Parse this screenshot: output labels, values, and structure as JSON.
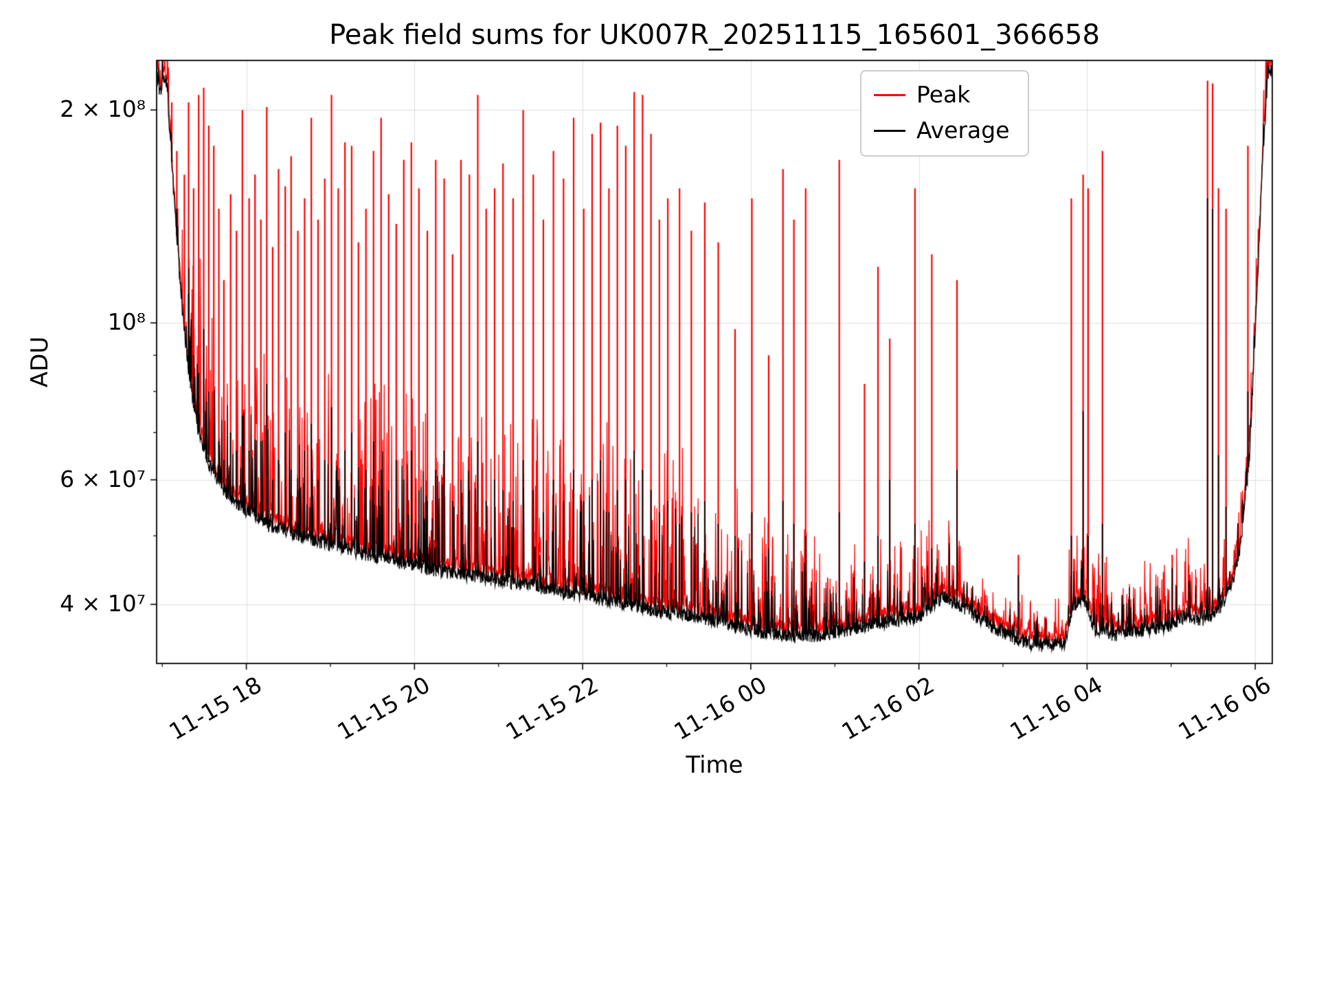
{
  "figure": {
    "title": "Peak field sums for UK007R_20251115_165601_366658",
    "xlabel": "Time",
    "ylabel": "ADU"
  },
  "legend": {
    "items": [
      {
        "label": "Peak",
        "color": "#ff0000"
      },
      {
        "label": "Average",
        "color": "#000000"
      }
    ]
  },
  "chart_data": {
    "type": "line",
    "title": "Peak field sums for UK007R_20251115_165601_366658",
    "xlabel": "Time",
    "ylabel": "ADU",
    "yscale": "log",
    "grid": true,
    "ylim": [
      33000000.0,
      235000000.0
    ],
    "x_hours_span": [
      0,
      13.27
    ],
    "x_start_label": "11-15 16:56",
    "xticks": [
      {
        "t": 1.067,
        "label": "11-15 18"
      },
      {
        "t": 3.067,
        "label": "11-15 20"
      },
      {
        "t": 5.067,
        "label": "11-15 22"
      },
      {
        "t": 7.067,
        "label": "11-16 00"
      },
      {
        "t": 9.067,
        "label": "11-16 02"
      },
      {
        "t": 11.067,
        "label": "11-16 04"
      },
      {
        "t": 13.067,
        "label": "11-16 06"
      }
    ],
    "xticks_minor_t": [
      0.067,
      2.067,
      4.067,
      6.067,
      8.067,
      10.067,
      12.067
    ],
    "yticks": [
      {
        "v": 40000000.0,
        "label": "4 × 10⁷"
      },
      {
        "v": 60000000.0,
        "label": "6 × 10⁷"
      },
      {
        "v": 100000000.0,
        "label": "10⁸"
      },
      {
        "v": 200000000.0,
        "label": "2 × 10⁸"
      }
    ],
    "yticks_minor": [
      50000000.0,
      70000000.0,
      80000000.0,
      90000000.0
    ],
    "legend_position": "upper center-right (inside axes)",
    "series": [
      {
        "name": "Peak",
        "color": "#ff0000"
      },
      {
        "name": "Average",
        "color": "#000000"
      }
    ],
    "average_baseline_keyframes": [
      [
        0,
        225000000.0
      ],
      [
        0.04,
        212000000.0
      ],
      [
        0.08,
        220000000.0
      ],
      [
        0.12,
        218000000.0
      ],
      [
        0.2,
        155000000.0
      ],
      [
        0.3,
        105000000.0
      ],
      [
        0.4,
        82000000.0
      ],
      [
        0.5,
        70000000.0
      ],
      [
        0.65,
        62000000.0
      ],
      [
        0.8,
        58000000.0
      ],
      [
        1.0,
        55000000.0
      ],
      [
        1.3,
        52000000.0
      ],
      [
        1.7,
        50000000.0
      ],
      [
        2.2,
        48000000.0
      ],
      [
        2.7,
        46500000.0
      ],
      [
        3.2,
        45000000.0
      ],
      [
        3.7,
        44000000.0
      ],
      [
        4.2,
        43000000.0
      ],
      [
        4.7,
        42000000.0
      ],
      [
        5.2,
        41000000.0
      ],
      [
        5.6,
        40000000.0
      ],
      [
        6.0,
        39000000.0
      ],
      [
        6.4,
        38500000.0
      ],
      [
        6.8,
        37500000.0
      ],
      [
        7.2,
        36500000.0
      ],
      [
        7.6,
        36000000.0
      ],
      [
        7.9,
        36200000.0
      ],
      [
        8.2,
        36800000.0
      ],
      [
        8.5,
        37500000.0
      ],
      [
        8.8,
        38000000.0
      ],
      [
        9.1,
        38500000.0
      ],
      [
        9.35,
        41000000.0
      ],
      [
        9.6,
        39500000.0
      ],
      [
        9.9,
        37500000.0
      ],
      [
        10.2,
        35800000.0
      ],
      [
        10.5,
        35000000.0
      ],
      [
        10.8,
        35200000.0
      ],
      [
        10.9,
        40000000.0
      ],
      [
        11.05,
        40500000.0
      ],
      [
        11.15,
        37000000.0
      ],
      [
        11.4,
        36200000.0
      ],
      [
        11.7,
        36800000.0
      ],
      [
        12.0,
        37200000.0
      ],
      [
        12.25,
        38500000.0
      ],
      [
        12.45,
        38000000.0
      ],
      [
        12.65,
        39500000.0
      ],
      [
        12.8,
        43000000.0
      ],
      [
        12.9,
        49000000.0
      ],
      [
        13.0,
        65000000.0
      ],
      [
        13.08,
        105000000.0
      ],
      [
        13.16,
        175000000.0
      ],
      [
        13.22,
        225000000.0
      ],
      [
        13.27,
        230000000.0
      ]
    ],
    "spikes": [
      [
        0.18,
        205000000.0,
        180000000.0
      ],
      [
        0.24,
        175000000.0,
        145000000.0
      ],
      [
        0.33,
        162000000.0,
        95000000.0
      ],
      [
        0.38,
        205000000.0,
        110000000.0
      ],
      [
        0.44,
        155000000.0,
        90000000.0
      ],
      [
        0.5,
        210000000.0,
        85000000.0
      ],
      [
        0.56,
        215000000.0,
        98000000.0
      ],
      [
        0.62,
        190000000.0,
        80000000.0
      ],
      [
        0.68,
        178000000.0,
        72000000.0
      ],
      [
        0.74,
        145000000.0,
        68000000.0
      ],
      [
        0.8,
        115000000.0,
        64000000.0
      ],
      [
        0.88,
        152000000.0,
        70000000.0
      ],
      [
        0.95,
        135000000.0,
        66000000.0
      ],
      [
        1.02,
        200000000.0,
        74000000.0
      ],
      [
        1.1,
        150000000.0,
        66000000.0
      ],
      [
        1.17,
        162000000.0,
        62000000.0
      ],
      [
        1.24,
        140000000.0,
        68000000.0
      ],
      [
        1.31,
        202000000.0,
        82000000.0
      ],
      [
        1.38,
        128000000.0,
        60000000.0
      ],
      [
        1.45,
        165000000.0,
        64000000.0
      ],
      [
        1.53,
        156000000.0,
        70000000.0
      ],
      [
        1.6,
        172000000.0,
        62000000.0
      ],
      [
        1.68,
        135000000.0,
        58000000.0
      ],
      [
        1.76,
        150000000.0,
        66000000.0
      ],
      [
        1.84,
        195000000.0,
        72000000.0
      ],
      [
        1.92,
        140000000.0,
        60000000.0
      ],
      [
        2.0,
        160000000.0,
        64000000.0
      ],
      [
        2.08,
        210000000.0,
        76000000.0
      ],
      [
        2.16,
        155000000.0,
        60000000.0
      ],
      [
        2.24,
        180000000.0,
        66000000.0
      ],
      [
        2.32,
        178000000.0,
        70000000.0
      ],
      [
        2.4,
        130000000.0,
        58000000.0
      ],
      [
        2.49,
        145000000.0,
        62000000.0
      ],
      [
        2.58,
        175000000.0,
        68000000.0
      ],
      [
        2.67,
        195000000.0,
        62000000.0
      ],
      [
        2.76,
        152000000.0,
        58000000.0
      ],
      [
        2.85,
        138000000.0,
        64000000.0
      ],
      [
        2.94,
        170000000.0,
        60000000.0
      ],
      [
        3.03,
        180000000.0,
        66000000.0
      ],
      [
        3.12,
        155000000.0,
        58000000.0
      ],
      [
        3.22,
        135000000.0,
        56000000.0
      ],
      [
        3.32,
        170000000.0,
        62000000.0
      ],
      [
        3.42,
        160000000.0,
        66000000.0
      ],
      [
        3.52,
        125000000.0,
        56000000.0
      ],
      [
        3.62,
        170000000.0,
        60000000.0
      ],
      [
        3.72,
        162000000.0,
        58000000.0
      ],
      [
        3.82,
        210000000.0,
        68000000.0
      ],
      [
        3.92,
        145000000.0,
        56000000.0
      ],
      [
        4.02,
        155000000.0,
        60000000.0
      ],
      [
        4.12,
        168000000.0,
        58000000.0
      ],
      [
        4.24,
        150000000.0,
        56000000.0
      ],
      [
        4.36,
        200000000.0,
        64000000.0
      ],
      [
        4.48,
        162000000.0,
        58000000.0
      ],
      [
        4.6,
        140000000.0,
        54000000.0
      ],
      [
        4.72,
        175000000.0,
        60000000.0
      ],
      [
        4.84,
        160000000.0,
        56000000.0
      ],
      [
        4.96,
        195000000.0,
        62000000.0
      ],
      [
        5.08,
        145000000.0,
        56000000.0
      ],
      [
        5.18,
        185000000.0,
        60000000.0
      ],
      [
        5.28,
        192000000.0,
        64000000.0
      ],
      [
        5.38,
        155000000.0,
        54000000.0
      ],
      [
        5.48,
        190000000.0,
        58000000.0
      ],
      [
        5.58,
        178000000.0,
        60000000.0
      ],
      [
        5.68,
        212000000.0,
        66000000.0
      ],
      [
        5.78,
        210000000.0,
        62000000.0
      ],
      [
        5.88,
        185000000.0,
        58000000.0
      ],
      [
        5.98,
        140000000.0,
        54000000.0
      ],
      [
        6.08,
        150000000.0,
        56000000.0
      ],
      [
        6.22,
        155000000.0,
        52000000.0
      ],
      [
        6.36,
        135000000.0,
        54000000.0
      ],
      [
        6.52,
        148000000.0,
        56000000.0
      ],
      [
        6.68,
        130000000.0,
        52000000.0
      ],
      [
        6.88,
        98000000.0,
        50000000.0
      ],
      [
        7.08,
        150000000.0,
        54000000.0
      ],
      [
        7.28,
        90000000.0,
        48000000.0
      ],
      [
        7.45,
        165000000.0,
        56000000.0
      ],
      [
        7.58,
        140000000.0,
        52000000.0
      ],
      [
        7.72,
        155000000.0,
        50000000.0
      ],
      [
        8.12,
        170000000.0,
        54000000.0
      ],
      [
        8.42,
        82000000.0,
        46000000.0
      ],
      [
        8.58,
        120000000.0,
        50000000.0
      ],
      [
        8.72,
        95000000.0,
        60000000.0
      ],
      [
        9.02,
        155000000.0,
        52000000.0
      ],
      [
        9.22,
        125000000.0,
        48000000.0
      ],
      [
        9.52,
        115000000.0,
        62000000.0
      ],
      [
        10.25,
        47000000.0,
        44000000.0
      ],
      [
        10.88,
        150000000.0,
        50000000.0
      ],
      [
        11.02,
        162000000.0,
        75000000.0
      ],
      [
        11.08,
        155000000.0,
        50000000.0
      ],
      [
        11.25,
        175000000.0,
        52000000.0
      ],
      [
        12.08,
        47000000.0,
        45000000.0
      ],
      [
        12.5,
        220000000.0,
        150000000.0
      ],
      [
        12.56,
        218000000.0,
        145000000.0
      ],
      [
        12.63,
        155000000.0,
        65000000.0
      ],
      [
        12.72,
        145000000.0,
        55000000.0
      ],
      [
        12.98,
        178000000.0,
        80000000.0
      ]
    ]
  }
}
